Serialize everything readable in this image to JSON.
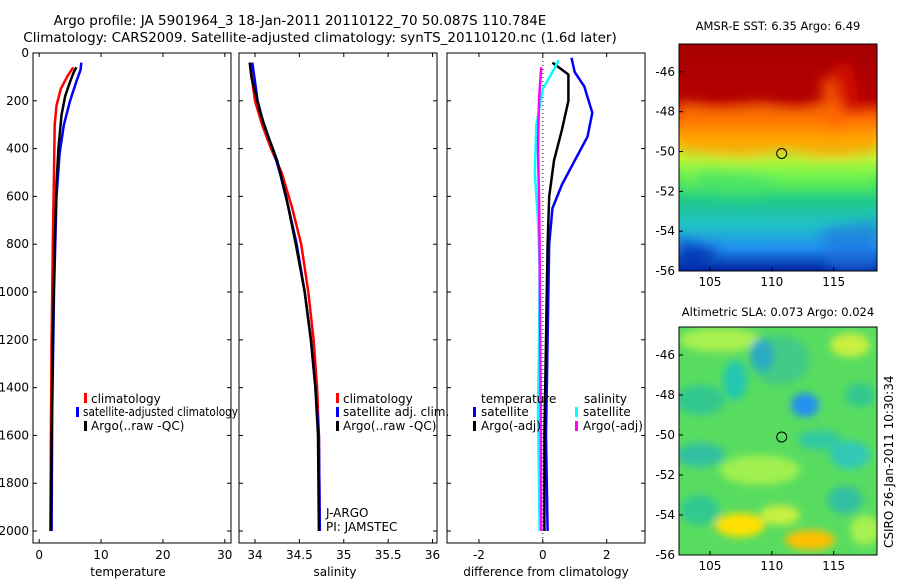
{
  "header": {
    "line1": "Argo profile: JA 5901964_3 18-Jan-2011 20110122_70 50.087S 110.784E",
    "line2": "Climatology: CARS2009. Satellite-adjusted climatology: synTS_20110120.nc (1.6d later)"
  },
  "side_label": "CSIRO 26-Jan-2011 10:30:34",
  "depth_axis": {
    "ylim": [
      0,
      2050
    ],
    "ticks": [
      "0",
      "200",
      "400",
      "600",
      "800",
      "1000",
      "1200",
      "1400",
      "1600",
      "1800",
      "2000"
    ]
  },
  "chart_data": [
    {
      "id": "temp",
      "type": "line",
      "xlabel": "temperature",
      "xlim": [
        -1,
        31
      ],
      "xticks": [
        "0",
        "10",
        "20",
        "30"
      ],
      "legend": [
        "climatology",
        "satellite-adjusted climatology",
        "Argo(..raw -QC)"
      ],
      "colors": [
        "#ff0000",
        "#0000ff",
        "#000000"
      ],
      "series": [
        {
          "name": "climatology",
          "points": [
            [
              5.5,
              60
            ],
            [
              4.5,
              100
            ],
            [
              3.5,
              150
            ],
            [
              2.8,
              220
            ],
            [
              2.5,
              300
            ],
            [
              2.4,
              500
            ],
            [
              2.2,
              800
            ],
            [
              2.0,
              1200
            ],
            [
              1.9,
              1600
            ],
            [
              1.8,
              2000
            ]
          ]
        },
        {
          "name": "satellite-adjusted climatology",
          "points": [
            [
              6.8,
              40
            ],
            [
              6.7,
              70
            ],
            [
              6.0,
              120
            ],
            [
              5.0,
              200
            ],
            [
              4.0,
              300
            ],
            [
              3.3,
              420
            ],
            [
              2.8,
              600
            ],
            [
              2.4,
              1000
            ],
            [
              2.1,
              1500
            ],
            [
              2.0,
              2000
            ]
          ]
        },
        {
          "name": "Argo(..raw -QC)",
          "points": [
            [
              6.0,
              60
            ],
            [
              5.6,
              80
            ],
            [
              5.0,
              120
            ],
            [
              4.2,
              180
            ],
            [
              3.6,
              260
            ],
            [
              3.1,
              400
            ],
            [
              2.8,
              550
            ],
            [
              2.5,
              800
            ],
            [
              2.2,
              1200
            ],
            [
              2.0,
              1600
            ],
            [
              1.9,
              2000
            ]
          ]
        }
      ]
    },
    {
      "id": "sal",
      "type": "line",
      "xlabel": "salinity",
      "xlim": [
        33.82,
        36.05
      ],
      "xticks": [
        "34",
        "34.5",
        "35",
        "35.5",
        "36"
      ],
      "legend": [
        "climatology",
        "satellite adj. clim.",
        "Argo(..raw -QC)"
      ],
      "colors": [
        "#ff0000",
        "#0000ff",
        "#000000"
      ],
      "annotation": [
        "J-ARGO",
        "PI: JAMSTEC"
      ],
      "series": [
        {
          "name": "climatology",
          "points": [
            [
              33.95,
              40
            ],
            [
              33.97,
              120
            ],
            [
              34.0,
              200
            ],
            [
              34.08,
              300
            ],
            [
              34.18,
              400
            ],
            [
              34.3,
              500
            ],
            [
              34.42,
              650
            ],
            [
              34.52,
              800
            ],
            [
              34.6,
              1000
            ],
            [
              34.66,
              1200
            ],
            [
              34.7,
              1400
            ],
            [
              34.72,
              1600
            ],
            [
              34.73,
              2000
            ]
          ]
        },
        {
          "name": "satellite adj. clim.",
          "points": [
            [
              33.97,
              40
            ],
            [
              34.0,
              120
            ],
            [
              34.03,
              200
            ],
            [
              34.1,
              300
            ],
            [
              34.2,
              400
            ],
            [
              34.28,
              500
            ],
            [
              34.38,
              650
            ],
            [
              34.47,
              800
            ],
            [
              34.56,
              1000
            ],
            [
              34.63,
              1200
            ],
            [
              34.68,
              1400
            ],
            [
              34.72,
              1600
            ],
            [
              34.73,
              2000
            ]
          ]
        },
        {
          "name": "Argo(..raw -QC)",
          "points": [
            [
              33.94,
              40
            ],
            [
              33.96,
              100
            ],
            [
              34.0,
              160
            ],
            [
              34.06,
              250
            ],
            [
              34.15,
              350
            ],
            [
              34.25,
              450
            ],
            [
              34.35,
              600
            ],
            [
              34.46,
              800
            ],
            [
              34.56,
              1000
            ],
            [
              34.63,
              1200
            ],
            [
              34.68,
              1400
            ],
            [
              34.71,
              1600
            ],
            [
              34.72,
              2000
            ]
          ]
        }
      ]
    },
    {
      "id": "diff",
      "type": "line",
      "xlabel": "difference from climatology",
      "xlim": [
        -3.0,
        3.2
      ],
      "xticks": [
        "-2",
        "0",
        "2"
      ],
      "legend_title_temp": "temperature",
      "legend_title_sal": "salinity",
      "legend": [
        "satellite",
        "Argo(-adj)",
        "satellite",
        "Argo(-adj)"
      ],
      "colors": [
        "#0000ff",
        "#000000",
        "#00ffff",
        "#ff00ff"
      ],
      "zero_line": 0,
      "series": [
        {
          "name": "temperature satellite",
          "points": [
            [
              0.9,
              20
            ],
            [
              1.0,
              80
            ],
            [
              1.3,
              140
            ],
            [
              1.55,
              250
            ],
            [
              1.4,
              350
            ],
            [
              1.0,
              450
            ],
            [
              0.6,
              550
            ],
            [
              0.3,
              650
            ],
            [
              0.2,
              800
            ],
            [
              0.15,
              1200
            ],
            [
              0.1,
              1600
            ],
            [
              0.15,
              2000
            ]
          ]
        },
        {
          "name": "temperature Argo(-adj)",
          "points": [
            [
              0.3,
              40
            ],
            [
              0.8,
              90
            ],
            [
              0.8,
              200
            ],
            [
              0.6,
              320
            ],
            [
              0.35,
              450
            ],
            [
              0.2,
              600
            ],
            [
              0.15,
              800
            ],
            [
              0.1,
              1200
            ],
            [
              0.05,
              1600
            ],
            [
              0.05,
              2000
            ]
          ]
        },
        {
          "name": "salinity satellite",
          "points": [
            [
              0.5,
              30
            ],
            [
              0.3,
              80
            ],
            [
              0.0,
              150
            ],
            [
              -0.2,
              300
            ],
            [
              -0.25,
              500
            ],
            [
              -0.15,
              700
            ],
            [
              -0.1,
              900
            ],
            [
              -0.12,
              1200
            ],
            [
              -0.15,
              1500
            ],
            [
              -0.12,
              1800
            ],
            [
              -0.1,
              2000
            ]
          ]
        },
        {
          "name": "salinity Argo(-adj)",
          "points": [
            [
              -0.05,
              60
            ],
            [
              -0.12,
              200
            ],
            [
              -0.15,
              400
            ],
            [
              -0.12,
              600
            ],
            [
              -0.1,
              800
            ],
            [
              -0.08,
              1200
            ],
            [
              -0.06,
              1600
            ],
            [
              -0.05,
              2000
            ]
          ]
        }
      ]
    },
    {
      "id": "sst_map",
      "type": "heatmap",
      "title": "AMSR-E SST: 6.35 Argo: 6.49",
      "xlim": [
        102.5,
        118.5
      ],
      "ylim": [
        -56,
        -44.6
      ],
      "xticks": [
        105,
        110,
        115
      ],
      "yticks": [
        -46,
        -48,
        -50,
        -52,
        -54,
        -56
      ],
      "xtick_labels": [
        "105",
        "110",
        "115"
      ],
      "ytick_labels": [
        "-46",
        "-48",
        "-50",
        "-52",
        "-54",
        "-56"
      ],
      "marker": [
        110.8,
        -50.1
      ]
    },
    {
      "id": "sla_map",
      "type": "heatmap",
      "title": "Altimetric SLA: 0.073 Argo: 0.024",
      "xlim": [
        102.5,
        118.5
      ],
      "ylim": [
        -56,
        -44.6
      ],
      "xticks": [
        105,
        110,
        115
      ],
      "yticks": [
        -46,
        -48,
        -50,
        -52,
        -54,
        -56
      ],
      "xtick_labels": [
        "105",
        "110",
        "115"
      ],
      "ytick_labels": [
        "-46",
        "-48",
        "-50",
        "-52",
        "-54",
        "-56"
      ],
      "marker": [
        110.8,
        -50.1
      ]
    }
  ]
}
